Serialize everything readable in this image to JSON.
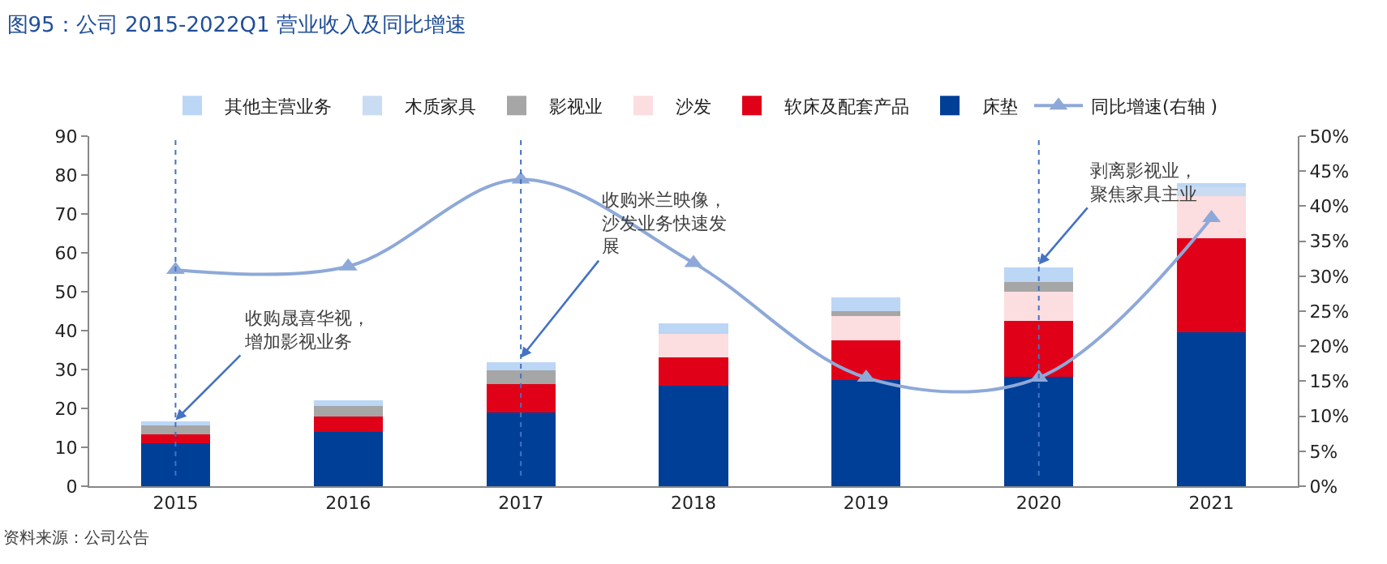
{
  "chart_data": {
    "type": "bar",
    "title": "图95：公司 2015-2022Q1 营业收入及同比增速",
    "categories": [
      "2015",
      "2016",
      "2017",
      "2018",
      "2019",
      "2020",
      "2021"
    ],
    "stacked": true,
    "series": [
      {
        "name": "床垫",
        "color": "#003f98",
        "values": [
          11.0,
          13.9,
          18.9,
          25.9,
          27.2,
          28.2,
          39.5
        ]
      },
      {
        "name": "软床及配套产品",
        "color": "#e00018",
        "values": [
          2.4,
          4.0,
          7.3,
          7.2,
          10.3,
          14.4,
          24.3
        ]
      },
      {
        "name": "沙发",
        "color": "#fcdde0",
        "values": [
          null,
          null,
          null,
          6.1,
          6.2,
          7.3,
          10.7
        ]
      },
      {
        "name": "影视业",
        "color": "#a6a6a6",
        "values": [
          2.2,
          2.8,
          3.5,
          null,
          1.2,
          2.5,
          null
        ]
      },
      {
        "name": "木质家具",
        "color": "#c9dcf2",
        "values": [
          null,
          null,
          null,
          null,
          null,
          null,
          2.3
        ]
      },
      {
        "name": "其他主营业务",
        "color": "#bcd6f5",
        "values": [
          1.1,
          1.3,
          2.1,
          2.6,
          3.7,
          3.9,
          1.1
        ]
      },
      {
        "name": "同比增速(右轴 )",
        "type": "line",
        "axis": "y2",
        "color": "#8ea9d8",
        "marker": "triangle",
        "values": [
          30.9,
          31.4,
          43.8,
          31.9,
          15.5,
          15.5,
          38.3
        ]
      }
    ],
    "ylim": [
      0,
      90
    ],
    "yticks": [
      0,
      10,
      20,
      30,
      40,
      50,
      60,
      70,
      80,
      90
    ],
    "y2lim": [
      0,
      50
    ],
    "y2ticks": [
      {
        "value": 0,
        "label": "0%"
      },
      {
        "value": 5,
        "label": "5%"
      },
      {
        "value": 10,
        "label": "10%"
      },
      {
        "value": 15,
        "label": "15%"
      },
      {
        "value": 20,
        "label": "20%"
      },
      {
        "value": 25,
        "label": "25%"
      },
      {
        "value": 30,
        "label": "30%"
      },
      {
        "value": 35,
        "label": "35%"
      },
      {
        "value": 40,
        "label": "40%"
      },
      {
        "value": 45,
        "label": "45%"
      },
      {
        "value": 50,
        "label": "50%"
      }
    ],
    "ref_lines": [
      {
        "axis": "x",
        "value": "2015",
        "color": "#4472c4",
        "line_style": "dotted"
      },
      {
        "axis": "x",
        "value": "2017",
        "color": "#4472c4",
        "line_style": "dotted"
      },
      {
        "axis": "x",
        "value": "2020",
        "color": "#4472c4",
        "line_style": "dotted"
      }
    ],
    "annotations": [
      {
        "text": "收购晟喜华视，增加影视业务",
        "x": "2015",
        "y": 17
      },
      {
        "text": "收购米兰映像，沙发业务快速发展",
        "x": "2017",
        "y": 33
      },
      {
        "text": "剥离影视业，聚焦家具主业",
        "x": "2020",
        "y": 57
      },
      "资料来源：公司公告"
    ],
    "legend": "top"
  }
}
